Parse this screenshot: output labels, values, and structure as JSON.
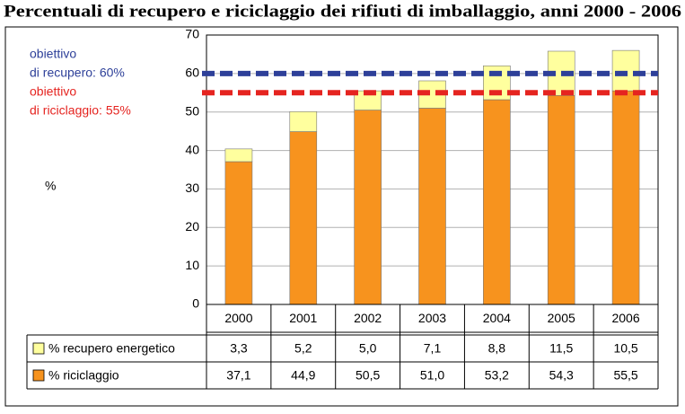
{
  "chart_data": {
    "type": "stacked-bar-table",
    "title": "Percentuali di recupero e riciclaggio dei rifiuti di imballaggio, anni 2000 - 2006",
    "y_label": "%",
    "categories": [
      "2000",
      "2001",
      "2002",
      "2003",
      "2004",
      "2005",
      "2006"
    ],
    "series": [
      {
        "name": "% recupero energetico",
        "color": "#ffff9e",
        "values": [
          3.3,
          5.2,
          5.0,
          7.1,
          8.8,
          11.5,
          10.5
        ],
        "value_labels": [
          "3,3",
          "5,2",
          "5,0",
          "7,1",
          "8,8",
          "11,5",
          "10,5"
        ]
      },
      {
        "name": "% riciclaggio",
        "color": "#f7931e",
        "values": [
          37.1,
          44.9,
          50.5,
          51.0,
          53.2,
          54.3,
          55.5
        ],
        "value_labels": [
          "37,1",
          "44,9",
          "50,5",
          "51,0",
          "53,2",
          "54,3",
          "55,5"
        ]
      }
    ],
    "ylim": [
      0,
      70
    ],
    "yticks": [
      0,
      10,
      20,
      30,
      40,
      50,
      60,
      70
    ],
    "grid": true,
    "reference_lines": [
      {
        "value": 60,
        "color": "#2e4099",
        "label": [
          "obiettivo",
          "di recupero: 60%"
        ]
      },
      {
        "value": 55,
        "color": "#e52420",
        "label": [
          "obiettivo",
          "di riciclaggio: 55%"
        ]
      }
    ]
  }
}
